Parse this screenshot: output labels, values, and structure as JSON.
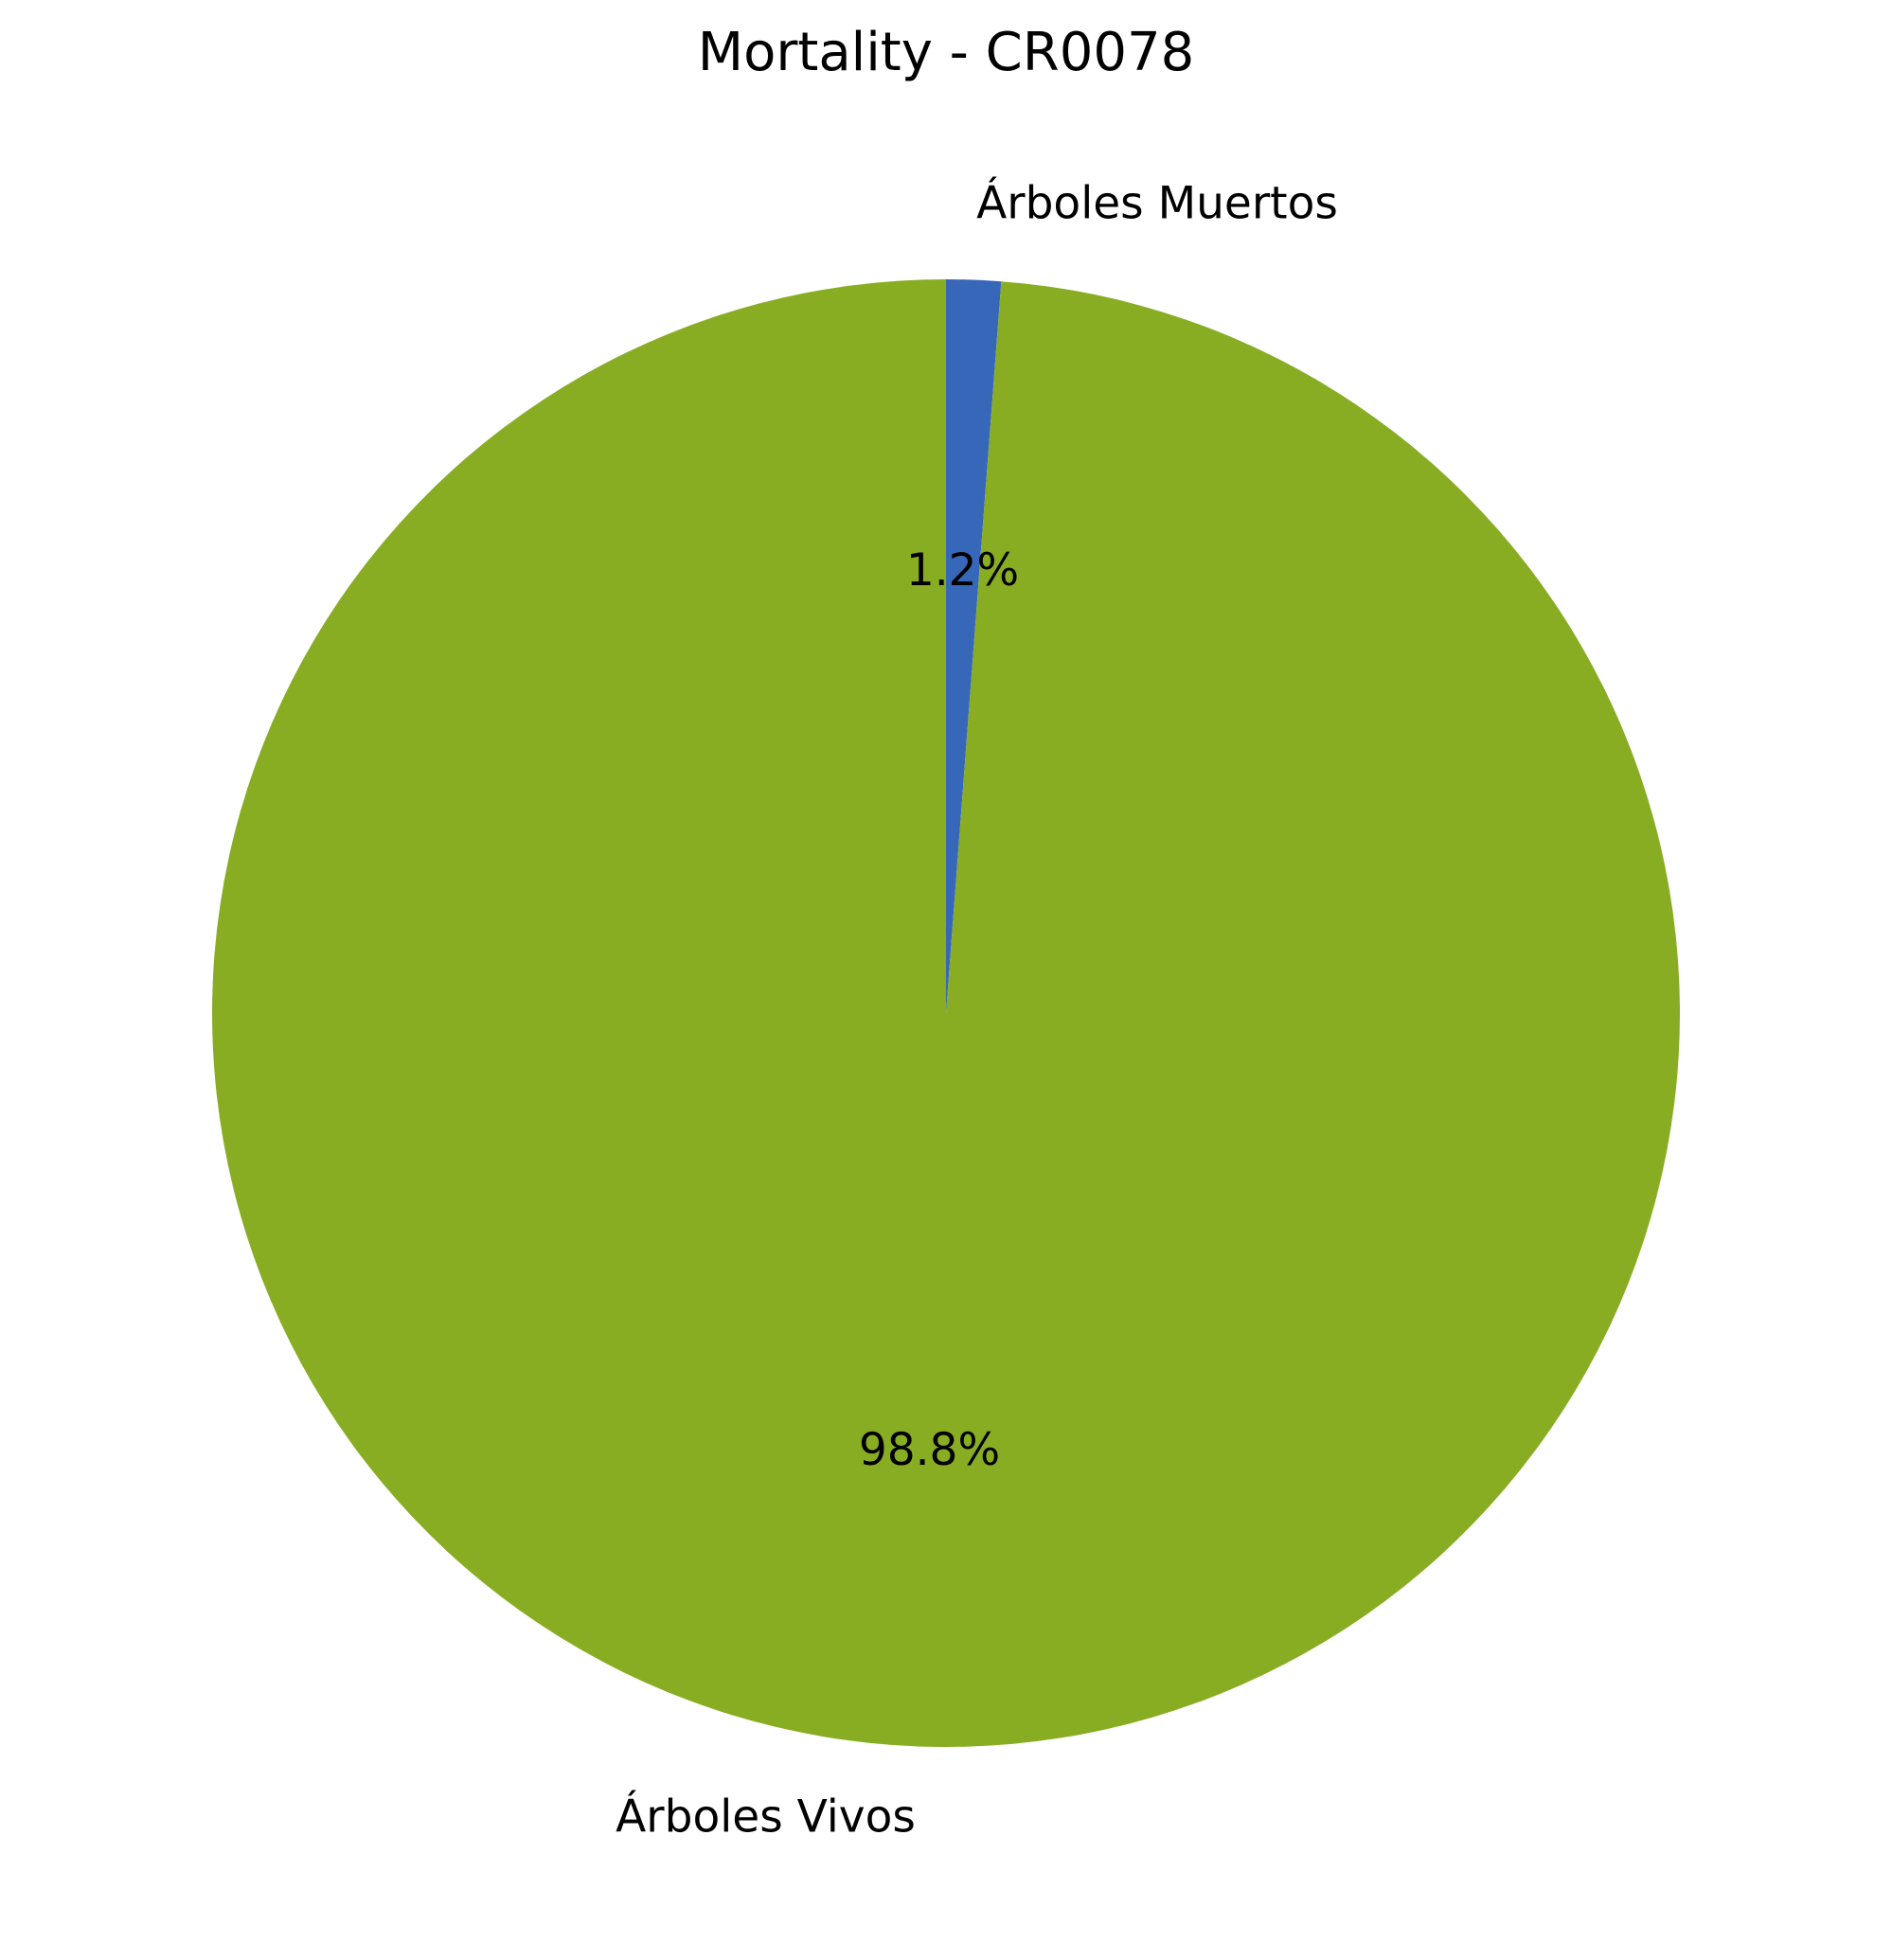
{
  "chart_data": {
    "type": "pie",
    "title": "Mortality - CR0078",
    "slices": [
      {
        "label": "Árboles Muertos",
        "value": 1.2,
        "pct_label": "1.2%",
        "color": "#3767b8"
      },
      {
        "label": "Árboles Vivos",
        "value": 98.8,
        "pct_label": "98.8%",
        "color": "#88ad23"
      }
    ],
    "start_angle_deg": 90,
    "direction": "clockwise"
  }
}
